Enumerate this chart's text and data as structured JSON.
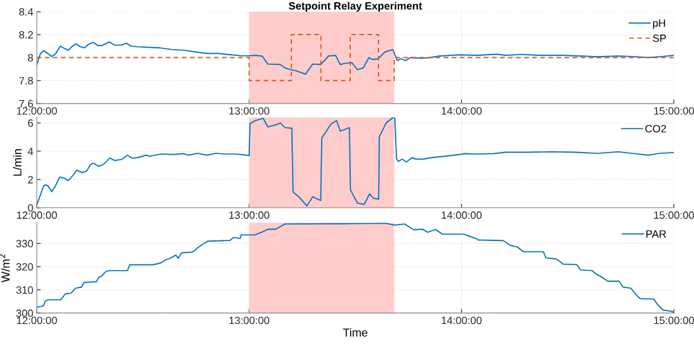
{
  "chart_data": [
    {
      "type": "line",
      "title": "Setpoint Relay Experiment",
      "xlim": [
        12,
        15
      ],
      "xticks": [
        {
          "value": 12,
          "label": "12:00:00"
        },
        {
          "value": 13,
          "label": "13:00:00"
        },
        {
          "value": 14,
          "label": "14:00:00"
        },
        {
          "value": 15,
          "label": "15:00:00"
        }
      ],
      "ylim": [
        7.6,
        8.4
      ],
      "yticks": [
        7.6,
        7.8,
        8,
        8.2,
        8.4
      ],
      "grid": true,
      "legend": "top right",
      "bands": [
        {
          "axis": "x",
          "from": 13,
          "to": 13.683,
          "color": "#ffcccc"
        }
      ],
      "series": [
        {
          "name": "pH",
          "color": "#0072bd",
          "line_style": "solid",
          "x": [
            12,
            12.016,
            12.032,
            12.049,
            12.07,
            12.087,
            12.111,
            12.13,
            12.148,
            12.168,
            12.186,
            12.206,
            12.225,
            12.244,
            12.265,
            12.287,
            12.308,
            12.341,
            12.368,
            12.4,
            12.422,
            12.444,
            12.476,
            12.519,
            12.584,
            12.639,
            12.693,
            12.747,
            12.801,
            12.855,
            12.909,
            12.963,
            13.0,
            13.028,
            13.061,
            13.088,
            13.147,
            13.169,
            13.196,
            13.223,
            13.266,
            13.299,
            13.337,
            13.374,
            13.407,
            13.429,
            13.45,
            13.483,
            13.51,
            13.537,
            13.564,
            13.58,
            13.607,
            13.64,
            13.677,
            13.697,
            13.716,
            13.737,
            13.759,
            13.807,
            13.851,
            13.894,
            13.991,
            14.078,
            14.165,
            14.208,
            14.284,
            14.37,
            14.478,
            14.587,
            14.641,
            14.733,
            14.803,
            14.879,
            14.944,
            15.0
          ],
          "values": [
            7.94,
            8.03,
            8.06,
            8.04,
            8.01,
            8.03,
            8.1,
            8.08,
            8.064,
            8.1,
            8.12,
            8.094,
            8.086,
            8.116,
            8.134,
            8.106,
            8.106,
            8.136,
            8.108,
            8.11,
            8.126,
            8.1,
            8.094,
            8.09,
            8.084,
            8.07,
            8.064,
            8.05,
            8.036,
            8.036,
            8.026,
            8.016,
            8.016,
            8.02,
            8.014,
            7.944,
            7.94,
            7.91,
            7.896,
            7.884,
            7.856,
            7.944,
            7.94,
            8.014,
            8.02,
            7.94,
            7.95,
            7.956,
            7.896,
            7.91,
            8.0,
            7.984,
            7.99,
            8.05,
            8.07,
            7.976,
            7.99,
            7.974,
            8.0,
            7.994,
            8.0,
            8.014,
            8.024,
            8.02,
            8.03,
            8.02,
            8.028,
            8.02,
            8.02,
            8.012,
            8.008,
            8.014,
            8.01,
            8.0,
            8.01,
            8.02
          ]
        },
        {
          "name": "SP",
          "color": "#d95319",
          "line_style": "dashed",
          "x": [
            12,
            13,
            13,
            13.199,
            13.199,
            13.338,
            13.338,
            13.476,
            13.476,
            13.609,
            13.609,
            13.683,
            13.683,
            15
          ],
          "values": [
            8,
            8,
            7.8,
            7.8,
            8.2,
            8.2,
            7.8,
            7.8,
            8.2,
            8.2,
            7.8,
            7.8,
            8,
            8
          ]
        }
      ]
    },
    {
      "type": "line",
      "ylabel": "L/min",
      "xlim": [
        12,
        15
      ],
      "xticks": [
        {
          "value": 12,
          "label": "12:00:00"
        },
        {
          "value": 13,
          "label": "13:00:00"
        },
        {
          "value": 14,
          "label": "14:00:00"
        },
        {
          "value": 15,
          "label": "15:00:00"
        }
      ],
      "ylim": [
        0,
        6.4
      ],
      "yticks": [
        0,
        2,
        4,
        6
      ],
      "grid": true,
      "legend": "top right",
      "bands": [
        {
          "axis": "x",
          "from": 13,
          "to": 13.683,
          "color": "#ffcccc"
        }
      ],
      "series": [
        {
          "name": "CO2",
          "color": "#0072bd",
          "line_style": "solid",
          "x": [
            12,
            12.016,
            12.032,
            12.043,
            12.054,
            12.07,
            12.087,
            12.108,
            12.13,
            12.148,
            12.168,
            12.189,
            12.211,
            12.233,
            12.254,
            12.267,
            12.292,
            12.314,
            12.344,
            12.368,
            12.4,
            12.427,
            12.449,
            12.476,
            12.514,
            12.53,
            12.584,
            12.639,
            12.693,
            12.714,
            12.758,
            12.801,
            12.844,
            12.887,
            12.931,
            12.963,
            13.0,
            13.004,
            13.028,
            13.066,
            13.088,
            13.126,
            13.147,
            13.169,
            13.201,
            13.207,
            13.234,
            13.272,
            13.299,
            13.337,
            13.342,
            13.364,
            13.385,
            13.412,
            13.429,
            13.45,
            13.472,
            13.477,
            13.51,
            13.542,
            13.567,
            13.585,
            13.61,
            13.613,
            13.645,
            13.677,
            13.686,
            13.694,
            13.702,
            13.721,
            13.74,
            13.767,
            13.786,
            13.818,
            13.861,
            13.916,
            13.991,
            14.013,
            14.078,
            14.154,
            14.208,
            14.316,
            14.424,
            14.532,
            14.641,
            14.738,
            14.803,
            14.879,
            14.933,
            15.0
          ],
          "values": [
            0.21,
            0.86,
            1.55,
            1.63,
            1.52,
            1.14,
            1.52,
            2.17,
            2.09,
            1.92,
            2.25,
            2.66,
            2.49,
            2.58,
            3.07,
            3.15,
            2.93,
            3.07,
            3.52,
            3.34,
            3.42,
            3.72,
            3.51,
            3.55,
            3.72,
            3.64,
            3.8,
            3.77,
            3.83,
            3.72,
            3.85,
            3.72,
            3.85,
            3.8,
            3.8,
            3.77,
            3.7,
            5.95,
            6.16,
            6.33,
            5.72,
            5.87,
            6.0,
            5.67,
            5.63,
            1.11,
            0.78,
            0.13,
            0.78,
            0.51,
            4.94,
            5.43,
            5.92,
            6.16,
            5.43,
            5.54,
            5.67,
            1.27,
            0.33,
            0.24,
            0.99,
            0.67,
            0.62,
            5.02,
            6.0,
            6.38,
            6.33,
            3.47,
            3.28,
            3.44,
            3.23,
            3.55,
            3.44,
            3.44,
            3.55,
            3.64,
            3.77,
            3.83,
            3.8,
            3.83,
            3.93,
            3.93,
            3.96,
            3.93,
            3.85,
            3.96,
            3.85,
            3.72,
            3.85,
            3.91
          ]
        }
      ]
    },
    {
      "type": "line",
      "ylabel": "W/m$^{2}$",
      "xlabel": "Time",
      "xlim": [
        12,
        15
      ],
      "xticks": [
        {
          "value": 12,
          "label": "12:00:00"
        },
        {
          "value": 13,
          "label": "13:00:00"
        },
        {
          "value": 14,
          "label": "14:00:00"
        },
        {
          "value": 15,
          "label": "15:00:00"
        }
      ],
      "ylim": [
        300,
        339
      ],
      "yticks": [
        300,
        310,
        320,
        330
      ],
      "grid": true,
      "legend": "top right",
      "bands": [
        {
          "axis": "x",
          "from": 13,
          "to": 13.683,
          "color": "#ffcccc"
        }
      ],
      "series": [
        {
          "name": "PAR",
          "color": "#0072bd",
          "line_style": "solid",
          "x": [
            12,
            12.032,
            12.04,
            12.054,
            12.114,
            12.133,
            12.162,
            12.182,
            12.211,
            12.222,
            12.281,
            12.292,
            12.308,
            12.325,
            12.341,
            12.427,
            12.438,
            12.547,
            12.584,
            12.606,
            12.628,
            12.655,
            12.666,
            12.682,
            12.731,
            12.747,
            12.758,
            12.779,
            12.806,
            12.909,
            12.925,
            12.958,
            12.963,
            13.028,
            13.061,
            13.088,
            13.126,
            13.169,
            13.45,
            13.645,
            13.683,
            13.732,
            13.775,
            13.818,
            13.84,
            13.878,
            13.91,
            14.013,
            14.04,
            14.073,
            14.078,
            14.197,
            14.229,
            14.262,
            14.284,
            14.294,
            14.386,
            14.397,
            14.446,
            14.462,
            14.478,
            14.543,
            14.56,
            14.614,
            14.63,
            14.668,
            14.689,
            14.743,
            14.76,
            14.798,
            14.819,
            14.841,
            14.906,
            14.922,
            14.949,
            14.987,
            15.0
          ],
          "values": [
            302.5,
            303.1,
            305.2,
            305.7,
            305.7,
            308.2,
            308.6,
            310.7,
            311.2,
            313.2,
            313.5,
            315.4,
            316.1,
            317.9,
            318.3,
            318.3,
            320.8,
            320.8,
            321.6,
            322.9,
            323.6,
            325.0,
            323.6,
            326.0,
            326.2,
            327.2,
            328.2,
            329.5,
            331.0,
            331.3,
            332.5,
            332.2,
            333.7,
            333.7,
            334.9,
            336.1,
            336.2,
            338.4,
            338.5,
            338.7,
            337.9,
            338.4,
            335.9,
            336.1,
            334.8,
            336.0,
            334.0,
            334.0,
            333.0,
            332.0,
            331.5,
            331.2,
            329.2,
            328.5,
            327.0,
            326.4,
            326.4,
            323.8,
            323.3,
            322.3,
            321.1,
            320.9,
            318.6,
            318.3,
            317.1,
            315.0,
            313.7,
            313.7,
            311.2,
            310.7,
            308.2,
            306.2,
            306.0,
            303.8,
            301.3,
            300.8,
            300.3
          ]
        }
      ]
    }
  ]
}
